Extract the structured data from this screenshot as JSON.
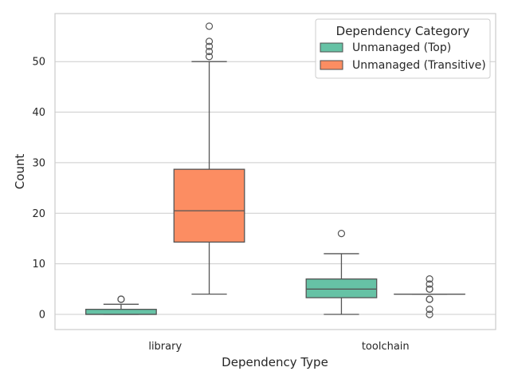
{
  "chart_data": {
    "type": "box",
    "xlabel": "Dependency Type",
    "ylabel": "Count",
    "categories": [
      "library",
      "toolchain"
    ],
    "ylim": [
      -3,
      59.5
    ],
    "yticks": [
      0,
      10,
      20,
      30,
      40,
      50
    ],
    "grid": "horizontal",
    "legend": {
      "title": "Dependency Category",
      "placement": "top-right"
    },
    "series": [
      {
        "name": "Unmanaged (Top)",
        "color": "#66c2a5",
        "boxes": [
          {
            "whisker_low": 0,
            "q1": 0,
            "median": 0,
            "q3": 1,
            "whisker_high": 2,
            "outliers": [
              3,
              3
            ]
          },
          {
            "whisker_low": 0,
            "q1": 3.3,
            "median": 5,
            "q3": 7,
            "whisker_high": 12,
            "outliers": [
              16
            ]
          }
        ]
      },
      {
        "name": "Unmanaged (Transitive)",
        "color": "#fc8d62",
        "boxes": [
          {
            "whisker_low": 4,
            "q1": 14.3,
            "median": 20.5,
            "q3": 28.7,
            "whisker_high": 50,
            "outliers": [
              51,
              52,
              53,
              54,
              57
            ]
          },
          {
            "whisker_low": 4,
            "q1": 4,
            "median": 4,
            "q3": 4,
            "whisker_high": 4,
            "outliers": [
              0,
              1,
              3,
              3,
              5,
              5,
              6,
              7
            ]
          }
        ]
      }
    ]
  }
}
